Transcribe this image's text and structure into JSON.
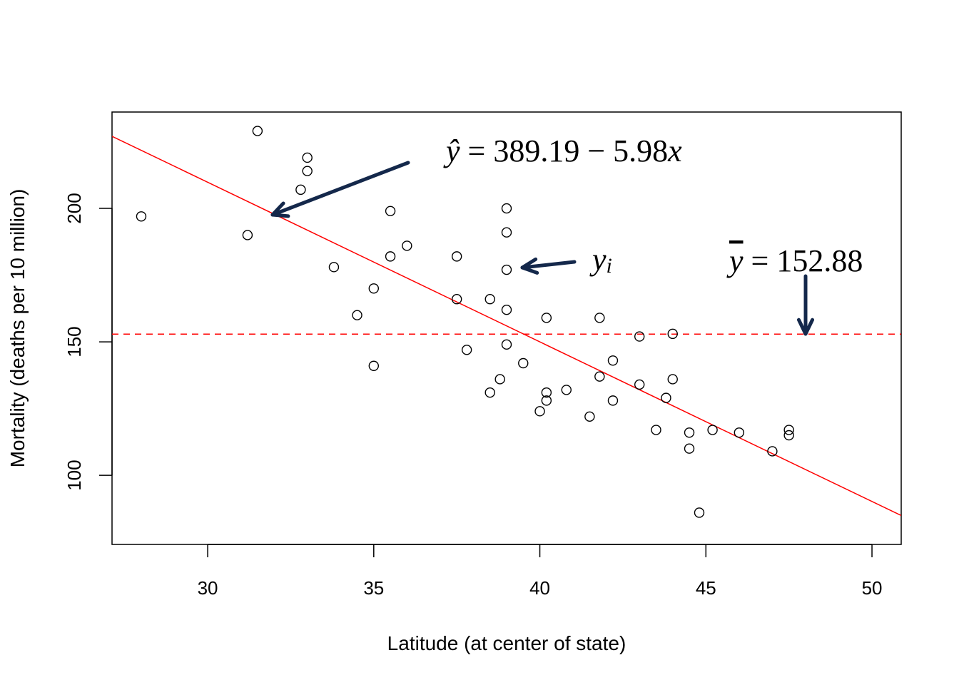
{
  "chart_data": {
    "type": "scatter",
    "title": "",
    "xlabel": "Latitude (at center of state)",
    "ylabel": "Mortality (deaths per 10 million)",
    "xlim": [
      27.12,
      50.88
    ],
    "ylim": [
      74.1,
      236.1
    ],
    "xticks": [
      30,
      35,
      40,
      45,
      50
    ],
    "yticks": [
      100,
      150,
      200
    ],
    "grid": false,
    "points": {
      "x": [
        28,
        31.5,
        33,
        33,
        32.8,
        31.2,
        35.5,
        35.5,
        36,
        33.8,
        35,
        34.5,
        35,
        37.5,
        37.5,
        37.8,
        38.5,
        38.5,
        38.8,
        39,
        39,
        39,
        39,
        39,
        39.5,
        40.2,
        40.2,
        40.2,
        40,
        40.8,
        41.5,
        41.8,
        41.8,
        42.2,
        42.2,
        43,
        43,
        44,
        44,
        43.8,
        43.5,
        44.5,
        44.5,
        44.8,
        45.2,
        46,
        47,
        47.5,
        47.5
      ],
      "y": [
        197,
        229,
        219,
        214,
        207,
        190,
        199,
        182,
        186,
        178,
        170,
        160,
        141,
        182,
        166,
        147,
        166,
        131,
        136,
        200,
        191,
        177,
        162,
        149,
        142,
        159,
        131,
        128,
        124,
        132,
        122,
        159,
        137,
        143,
        128,
        152,
        134,
        153,
        136,
        129,
        117,
        116,
        110,
        86,
        117,
        116,
        109,
        117,
        115
      ]
    },
    "regression_line": {
      "intercept": 389.19,
      "slope": -5.98,
      "color": "#ff0000"
    },
    "mean_line": {
      "y": 152.88,
      "color": "#ff0000",
      "style": "dashed"
    },
    "annotations": {
      "fit_label_hat": "ŷ",
      "fit_label_rest": " = 389.19 − 5.98",
      "fit_label_x": "x",
      "yi_label": "y",
      "yi_sub": "i",
      "mean_label_bar": "y",
      "mean_label_rest": " = 152.88",
      "arrow_color": "#14284b"
    }
  }
}
